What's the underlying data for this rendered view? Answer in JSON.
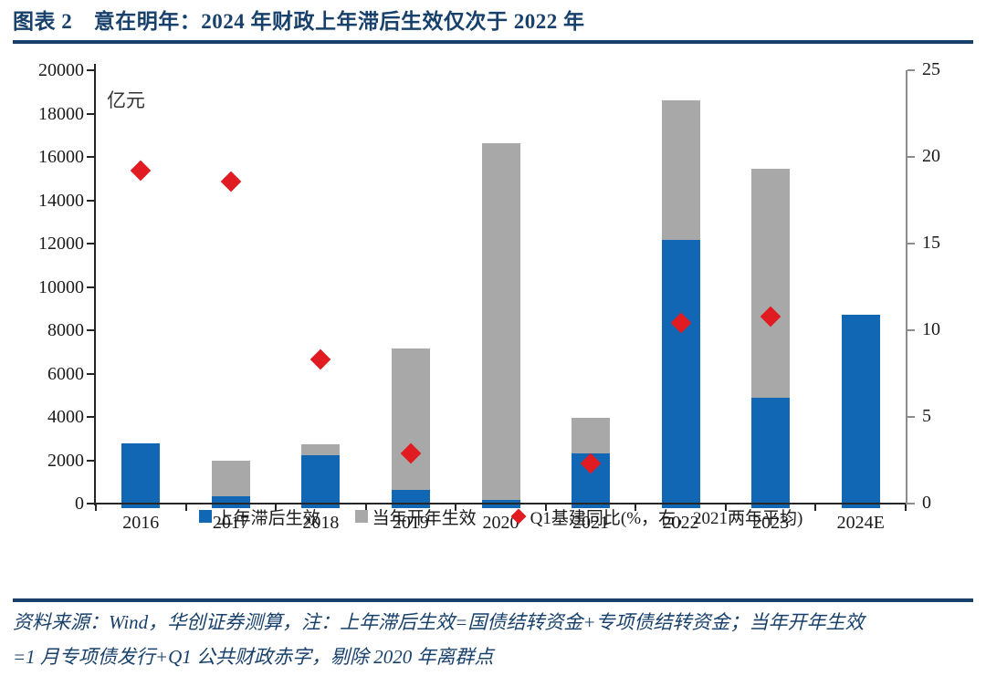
{
  "header": {
    "title": "图表 2　意在明年：2024 年财政上年滞后生效仅次于 2022 年"
  },
  "chart_data": {
    "type": "bar",
    "subtype": "stacked-bar-with-scatter",
    "title": "意在明年：2024 年财政上年滞后生效仅次于 2022 年",
    "unit_label": "亿元",
    "categories": [
      "2016",
      "2017",
      "2018",
      "2019",
      "2020",
      "2021",
      "2022",
      "2023",
      "2024E"
    ],
    "series": [
      {
        "name": "上年滞后生效",
        "type": "bar",
        "axis": "left",
        "color": "#1167B3",
        "values": [
          2800,
          350,
          2250,
          650,
          150,
          2300,
          12150,
          4900,
          8700
        ]
      },
      {
        "name": "当年开年生效",
        "type": "bar",
        "axis": "left",
        "color": "#A8A8A8",
        "values": [
          0,
          1650,
          500,
          6500,
          16500,
          1650,
          6450,
          10550,
          0
        ]
      },
      {
        "name": "Q1基建同比(%，右，2021两年平均)",
        "type": "scatter",
        "marker": "diamond",
        "axis": "right",
        "color": "#E01B21",
        "values": [
          19.2,
          18.6,
          8.3,
          2.9,
          null,
          2.3,
          10.4,
          10.8,
          null
        ]
      }
    ],
    "left_axis": {
      "min": 0,
      "max": 20000,
      "ticks": [
        0,
        2000,
        4000,
        6000,
        8000,
        10000,
        12000,
        14000,
        16000,
        18000,
        20000
      ]
    },
    "right_axis": {
      "min": 0,
      "max": 25,
      "ticks": [
        0,
        5,
        10,
        15,
        20,
        25
      ]
    },
    "grid": false,
    "legend_position": "bottom"
  },
  "footer": {
    "line1": "资料来源：Wind，华创证券测算，注：上年滞后生效=国债结转资金+专项债结转资金；当年开年生效",
    "line2": "=1 月专项债发行+Q1 公共财政赤字，剔除 2020 年离群点"
  },
  "colors": {
    "accent_navy": "#17406B",
    "bar_blue": "#1167B3",
    "bar_gray": "#A8A8A8",
    "diamond_red": "#E01B21",
    "axis_dark": "#262626",
    "axis_right_gray": "#8C8C8C"
  }
}
